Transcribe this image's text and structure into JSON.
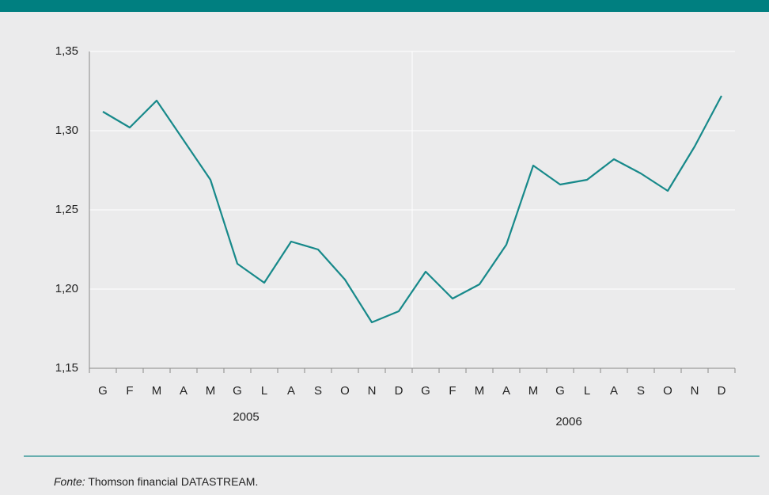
{
  "chart_data": {
    "type": "line",
    "categories": [
      "G",
      "F",
      "M",
      "A",
      "M",
      "G",
      "L",
      "A",
      "S",
      "O",
      "N",
      "D",
      "G",
      "F",
      "M",
      "A",
      "M",
      "G",
      "L",
      "A",
      "S",
      "O",
      "N",
      "D"
    ],
    "groups": [
      "2005",
      "2006"
    ],
    "series": [
      {
        "color": "#17898a",
        "values": [
          1.312,
          1.302,
          1.319,
          1.294,
          1.269,
          1.216,
          1.204,
          1.23,
          1.225,
          1.206,
          1.179,
          1.186,
          1.211,
          1.194,
          1.203,
          1.228,
          1.278,
          1.266,
          1.269,
          1.282,
          1.273,
          1.262,
          1.29,
          1.322
        ]
      }
    ],
    "ylim": [
      1.15,
      1.35
    ],
    "yticks": [
      {
        "value": 1.15,
        "label": "1,15"
      },
      {
        "value": 1.2,
        "label": "1,20"
      },
      {
        "value": 1.25,
        "label": "1,25"
      },
      {
        "value": 1.3,
        "label": "1,30"
      },
      {
        "value": 1.35,
        "label": "1,35"
      }
    ],
    "grid": true,
    "source_label": "Fonte:",
    "source": "Thomson financial DATASTREAM."
  }
}
